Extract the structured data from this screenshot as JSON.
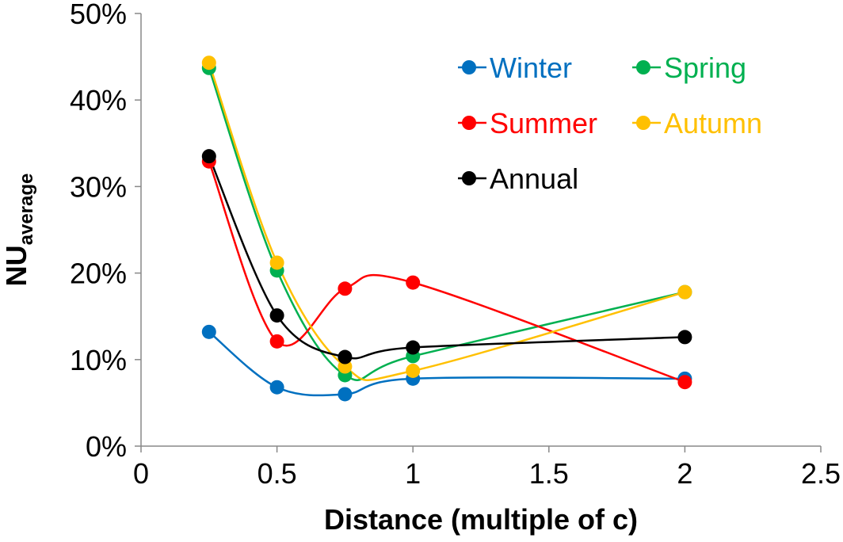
{
  "chart_data": {
    "type": "line",
    "title": "",
    "xlabel": "Distance (multiple of c)",
    "ylabel_main": "NU",
    "ylabel_sub": "average",
    "xlim": [
      0,
      2.5
    ],
    "ylim": [
      0,
      50
    ],
    "xticks": [
      0,
      0.5,
      1,
      1.5,
      2,
      2.5
    ],
    "xtick_labels": [
      "0",
      "0.5",
      "1",
      "1.5",
      "2",
      "2.5"
    ],
    "yticks": [
      0,
      10,
      20,
      30,
      40,
      50
    ],
    "ytick_labels": [
      "0%",
      "10%",
      "20%",
      "30%",
      "40%",
      "50%"
    ],
    "grid": false,
    "smoothed": true,
    "legend_placement": "top-right",
    "x": [
      0.25,
      0.5,
      0.75,
      1,
      2
    ],
    "series": [
      {
        "name": "Winter",
        "color": "#0070C0",
        "values": [
          13.2,
          6.8,
          6.0,
          7.8,
          7.8
        ]
      },
      {
        "name": "Spring",
        "color": "#00B050",
        "values": [
          43.7,
          20.3,
          8.2,
          10.4,
          17.8
        ]
      },
      {
        "name": "Summer",
        "color": "#FF0000",
        "values": [
          32.9,
          12.1,
          18.2,
          18.9,
          7.4
        ]
      },
      {
        "name": "Autumn",
        "color": "#FFC000",
        "values": [
          44.3,
          21.2,
          9.2,
          8.7,
          17.8
        ]
      },
      {
        "name": "Annual",
        "color": "#000000",
        "values": [
          33.5,
          15.1,
          10.3,
          11.4,
          12.6
        ]
      }
    ]
  }
}
